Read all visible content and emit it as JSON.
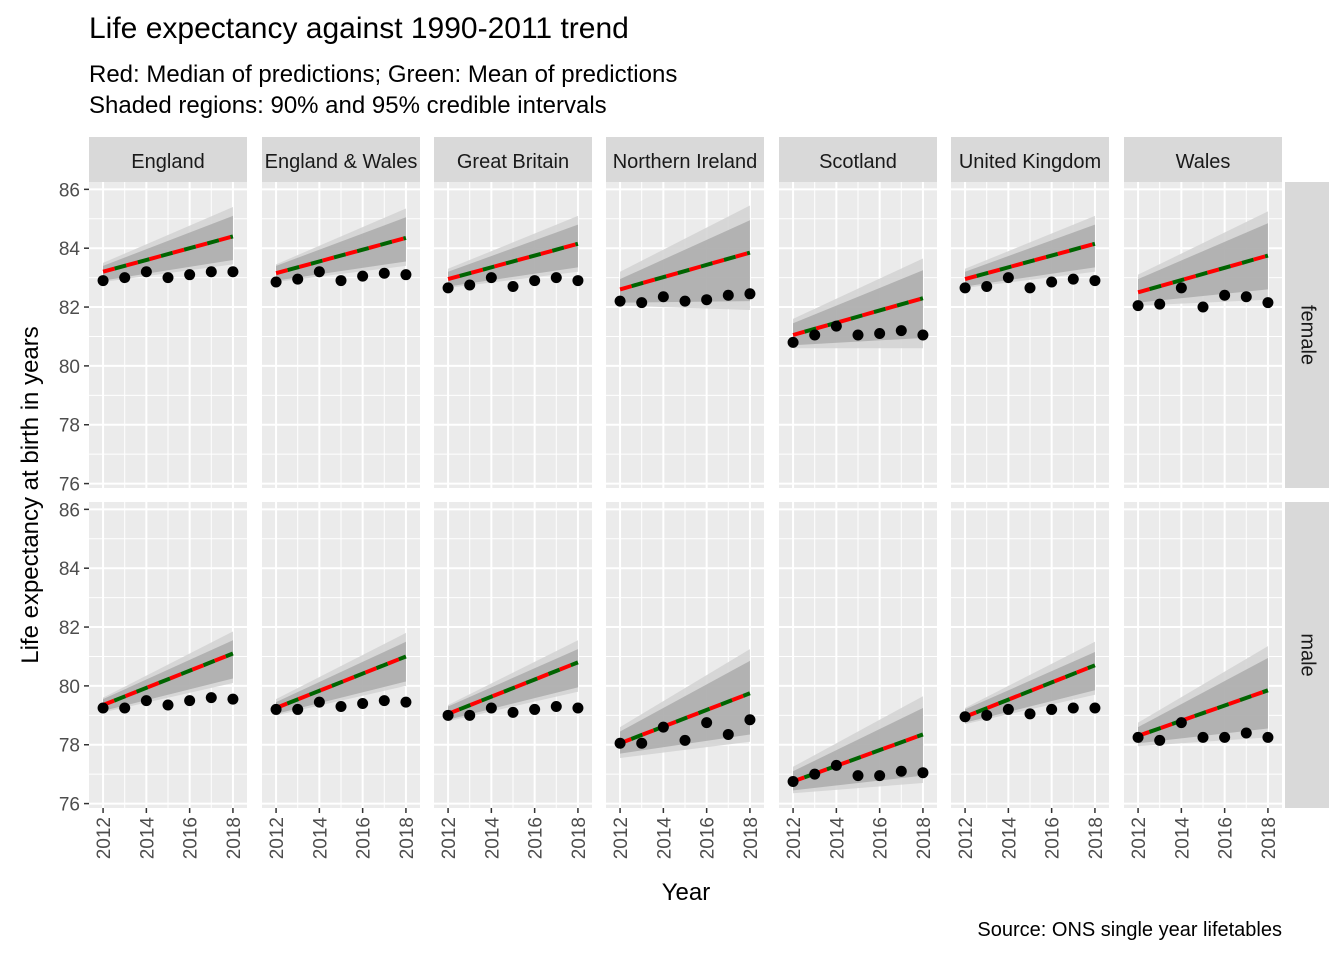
{
  "title": "Life expectancy against 1990-2011 trend",
  "subtitle_line1": "Red: Median of predictions; Green: Mean of predictions",
  "subtitle_line2": "Shaded regions: 90% and 95% credible intervals",
  "caption": "Source: ONS single year lifetables",
  "colors": {
    "panel_bg": "#EBEBEB",
    "grid": "#FFFFFF",
    "strip_bg": "#D9D9D9",
    "band95": "#D2D2D2",
    "band90": "#ABABAB",
    "median": "#FF0000",
    "mean": "#006400",
    "points": "#000000"
  },
  "chart_data": {
    "type": "line",
    "xlabel": "Year",
    "ylabel": "Life expectancy at birth in years",
    "xlim": [
      2011.35,
      2018.65
    ],
    "ylim": [
      75.85,
      86.25
    ],
    "x_ticks": [
      2012,
      2014,
      2016,
      2018
    ],
    "x_tick_labels": [
      "2012",
      "2014",
      "2016",
      "2018"
    ],
    "y_ticks": [
      76,
      78,
      80,
      82,
      84,
      86
    ],
    "y_tick_labels": [
      "76",
      "78",
      "80",
      "82",
      "84",
      "86"
    ],
    "grid": true,
    "facet_columns": [
      "England",
      "England & Wales",
      "Great Britain",
      "Northern Ireland",
      "Scotland",
      "United Kingdom",
      "Wales"
    ],
    "facet_rows": [
      "female",
      "male"
    ],
    "series_styles": {
      "observed": "black points",
      "median": "red dashed line",
      "mean": "green dashed line",
      "interval_90": "dark grey band",
      "interval_95": "light grey band"
    },
    "panels": [
      {
        "column": "England",
        "row": "female",
        "years": [
          2012,
          2018
        ],
        "trend": [
          83.2,
          84.4
        ],
        "ci90_lo": [
          82.9,
          83.6
        ],
        "ci90_hi": [
          83.4,
          85.1
        ],
        "ci95_lo": [
          82.85,
          83.45
        ],
        "ci95_hi": [
          83.5,
          85.4
        ],
        "observed_x": [
          2012,
          2013,
          2014,
          2015,
          2016,
          2017,
          2018
        ],
        "observed": [
          82.9,
          83.0,
          83.2,
          83.0,
          83.1,
          83.2,
          83.2
        ]
      },
      {
        "column": "England & Wales",
        "row": "female",
        "years": [
          2012,
          2018
        ],
        "trend": [
          83.15,
          84.35
        ],
        "ci90_lo": [
          82.9,
          83.55
        ],
        "ci90_hi": [
          83.4,
          85.05
        ],
        "ci95_lo": [
          82.85,
          83.4
        ],
        "ci95_hi": [
          83.45,
          85.35
        ],
        "observed_x": [
          2012,
          2013,
          2014,
          2015,
          2016,
          2017,
          2018
        ],
        "observed": [
          82.85,
          82.95,
          83.2,
          82.9,
          83.05,
          83.15,
          83.1
        ]
      },
      {
        "column": "Great Britain",
        "row": "female",
        "years": [
          2012,
          2018
        ],
        "trend": [
          82.95,
          84.15
        ],
        "ci90_lo": [
          82.7,
          83.35
        ],
        "ci90_hi": [
          83.2,
          84.8
        ],
        "ci95_lo": [
          82.65,
          83.2
        ],
        "ci95_hi": [
          83.3,
          85.1
        ],
        "observed_x": [
          2012,
          2013,
          2014,
          2015,
          2016,
          2017,
          2018
        ],
        "observed": [
          82.65,
          82.75,
          83.0,
          82.7,
          82.9,
          83.0,
          82.9
        ]
      },
      {
        "column": "Northern Ireland",
        "row": "female",
        "years": [
          2012,
          2018
        ],
        "trend": [
          82.6,
          83.85
        ],
        "ci90_lo": [
          82.15,
          82.2
        ],
        "ci90_hi": [
          82.95,
          84.95
        ],
        "ci95_lo": [
          82.05,
          81.9
        ],
        "ci95_hi": [
          83.2,
          85.45
        ],
        "observed_x": [
          2012,
          2013,
          2014,
          2015,
          2016,
          2017,
          2018
        ],
        "observed": [
          82.2,
          82.15,
          82.35,
          82.2,
          82.25,
          82.4,
          82.45
        ]
      },
      {
        "column": "Scotland",
        "row": "female",
        "years": [
          2012,
          2018
        ],
        "trend": [
          81.05,
          82.3
        ],
        "ci90_lo": [
          80.7,
          80.95
        ],
        "ci90_hi": [
          81.45,
          83.25
        ],
        "ci95_lo": [
          80.6,
          80.6
        ],
        "ci95_hi": [
          81.6,
          83.65
        ],
        "observed_x": [
          2012,
          2013,
          2014,
          2015,
          2016,
          2017,
          2018
        ],
        "observed": [
          80.8,
          81.05,
          81.35,
          81.05,
          81.1,
          81.2,
          81.05
        ]
      },
      {
        "column": "United Kingdom",
        "row": "female",
        "years": [
          2012,
          2018
        ],
        "trend": [
          82.95,
          84.15
        ],
        "ci90_lo": [
          82.7,
          83.35
        ],
        "ci90_hi": [
          83.2,
          84.8
        ],
        "ci95_lo": [
          82.65,
          83.2
        ],
        "ci95_hi": [
          83.3,
          85.1
        ],
        "observed_x": [
          2012,
          2013,
          2014,
          2015,
          2016,
          2017,
          2018
        ],
        "observed": [
          82.65,
          82.7,
          83.0,
          82.65,
          82.85,
          82.95,
          82.9
        ]
      },
      {
        "column": "Wales",
        "row": "female",
        "years": [
          2012,
          2018
        ],
        "trend": [
          82.5,
          83.75
        ],
        "ci90_lo": [
          82.15,
          82.6
        ],
        "ci90_hi": [
          82.95,
          84.85
        ],
        "ci95_lo": [
          82.05,
          82.25
        ],
        "ci95_hi": [
          83.1,
          85.25
        ],
        "observed_x": [
          2012,
          2013,
          2014,
          2015,
          2016,
          2017,
          2018
        ],
        "observed": [
          82.05,
          82.1,
          82.65,
          82.0,
          82.4,
          82.35,
          82.15
        ]
      },
      {
        "column": "England",
        "row": "male",
        "years": [
          2012,
          2018
        ],
        "trend": [
          79.35,
          81.1
        ],
        "ci90_lo": [
          79.15,
          80.25
        ],
        "ci90_hi": [
          79.55,
          81.55
        ],
        "ci95_lo": [
          79.1,
          80.1
        ],
        "ci95_hi": [
          79.6,
          81.85
        ],
        "observed_x": [
          2012,
          2013,
          2014,
          2015,
          2016,
          2017,
          2018
        ],
        "observed": [
          79.25,
          79.25,
          79.5,
          79.35,
          79.5,
          79.6,
          79.55
        ]
      },
      {
        "column": "England & Wales",
        "row": "male",
        "years": [
          2012,
          2018
        ],
        "trend": [
          79.25,
          81.0
        ],
        "ci90_lo": [
          79.05,
          80.15
        ],
        "ci90_hi": [
          79.45,
          81.5
        ],
        "ci95_lo": [
          79.0,
          80.0
        ],
        "ci95_hi": [
          79.55,
          81.8
        ],
        "observed_x": [
          2012,
          2013,
          2014,
          2015,
          2016,
          2017,
          2018
        ],
        "observed": [
          79.2,
          79.2,
          79.45,
          79.3,
          79.4,
          79.5,
          79.45
        ]
      },
      {
        "column": "Great Britain",
        "row": "male",
        "years": [
          2012,
          2018
        ],
        "trend": [
          79.05,
          80.8
        ],
        "ci90_lo": [
          78.85,
          79.95
        ],
        "ci90_hi": [
          79.3,
          81.25
        ],
        "ci95_lo": [
          78.8,
          79.8
        ],
        "ci95_hi": [
          79.35,
          81.55
        ],
        "observed_x": [
          2012,
          2013,
          2014,
          2015,
          2016,
          2017,
          2018
        ],
        "observed": [
          79.0,
          79.0,
          79.25,
          79.1,
          79.2,
          79.3,
          79.25
        ]
      },
      {
        "column": "Northern Ireland",
        "row": "male",
        "years": [
          2012,
          2018
        ],
        "trend": [
          78.05,
          79.75
        ],
        "ci90_lo": [
          77.7,
          78.35
        ],
        "ci90_hi": [
          78.45,
          80.85
        ],
        "ci95_lo": [
          77.55,
          78.1
        ],
        "ci95_hi": [
          78.6,
          81.25
        ],
        "observed_x": [
          2012,
          2013,
          2014,
          2015,
          2016,
          2017,
          2018
        ],
        "observed": [
          78.05,
          78.05,
          78.6,
          78.15,
          78.75,
          78.35,
          78.85
        ]
      },
      {
        "column": "Scotland",
        "row": "male",
        "years": [
          2012,
          2018
        ],
        "trend": [
          76.75,
          78.35
        ],
        "ci90_lo": [
          76.45,
          76.95
        ],
        "ci90_hi": [
          77.1,
          79.25
        ],
        "ci95_lo": [
          76.35,
          76.7
        ],
        "ci95_hi": [
          77.25,
          79.65
        ],
        "observed_x": [
          2012,
          2013,
          2014,
          2015,
          2016,
          2017,
          2018
        ],
        "observed": [
          76.75,
          77.0,
          77.3,
          76.95,
          76.95,
          77.1,
          77.05
        ]
      },
      {
        "column": "United Kingdom",
        "row": "male",
        "years": [
          2012,
          2018
        ],
        "trend": [
          78.95,
          80.7
        ],
        "ci90_lo": [
          78.75,
          79.85
        ],
        "ci90_hi": [
          79.2,
          81.15
        ],
        "ci95_lo": [
          78.7,
          79.7
        ],
        "ci95_hi": [
          79.25,
          81.5
        ],
        "observed_x": [
          2012,
          2013,
          2014,
          2015,
          2016,
          2017,
          2018
        ],
        "observed": [
          78.95,
          79.0,
          79.2,
          79.05,
          79.2,
          79.25,
          79.25
        ]
      },
      {
        "column": "Wales",
        "row": "male",
        "years": [
          2012,
          2018
        ],
        "trend": [
          78.3,
          79.85
        ],
        "ci90_lo": [
          78.05,
          78.55
        ],
        "ci90_hi": [
          78.6,
          80.95
        ],
        "ci95_lo": [
          77.95,
          78.25
        ],
        "ci95_hi": [
          78.75,
          81.35
        ],
        "observed_x": [
          2012,
          2013,
          2014,
          2015,
          2016,
          2017,
          2018
        ],
        "observed": [
          78.25,
          78.15,
          78.75,
          78.25,
          78.25,
          78.4,
          78.25
        ]
      }
    ]
  }
}
